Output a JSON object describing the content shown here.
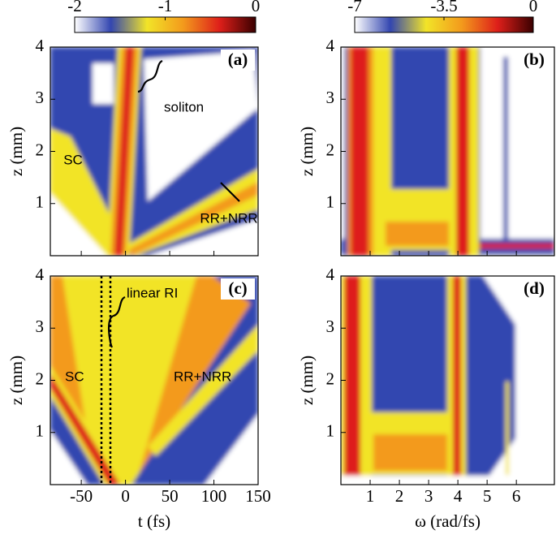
{
  "chart_data": [
    {
      "type": "heatmap",
      "panel_label": "(a)",
      "xlim": [
        -85,
        150
      ],
      "ylim": [
        0,
        4
      ],
      "yticks": [
        1,
        2,
        3,
        4
      ],
      "y_label": "z (mm)",
      "clim": [
        -2,
        0
      ],
      "cticks": [
        -2,
        -1,
        0
      ],
      "colormap": [
        "#ffffff",
        "#3346b0",
        "#f2e428",
        "#f39a1c",
        "#de1f1a",
        "#3a0000"
      ],
      "annotations": [
        "soliton",
        "SC",
        "RR+NRR"
      ]
    },
    {
      "type": "heatmap",
      "panel_label": "(b)",
      "xlim": [
        0,
        7.3
      ],
      "ylim": [
        0,
        4
      ],
      "yticks": [
        1,
        2,
        3,
        4
      ],
      "y_label": "z (mm)",
      "clim": [
        -7,
        0
      ],
      "cticks": [
        -7,
        -3.5,
        0
      ]
    },
    {
      "type": "heatmap",
      "panel_label": "(c)",
      "xlim": [
        -85,
        150
      ],
      "ylim": [
        0,
        4
      ],
      "xticks": [
        -50,
        0,
        50,
        100,
        150
      ],
      "yticks": [
        1,
        2,
        3,
        4
      ],
      "x_label": "t (fs)",
      "y_label": "z (mm)",
      "annotations": [
        "linear RI",
        "SC",
        "RR+NRR"
      ]
    },
    {
      "type": "heatmap",
      "panel_label": "(d)",
      "xlim": [
        0,
        7.3
      ],
      "ylim": [
        0,
        4
      ],
      "xticks": [
        1,
        2,
        3,
        4,
        5,
        6
      ],
      "yticks": [
        1,
        2,
        3,
        4
      ],
      "x_label": "ω (rad/fs)",
      "y_label": "z (mm)"
    }
  ]
}
